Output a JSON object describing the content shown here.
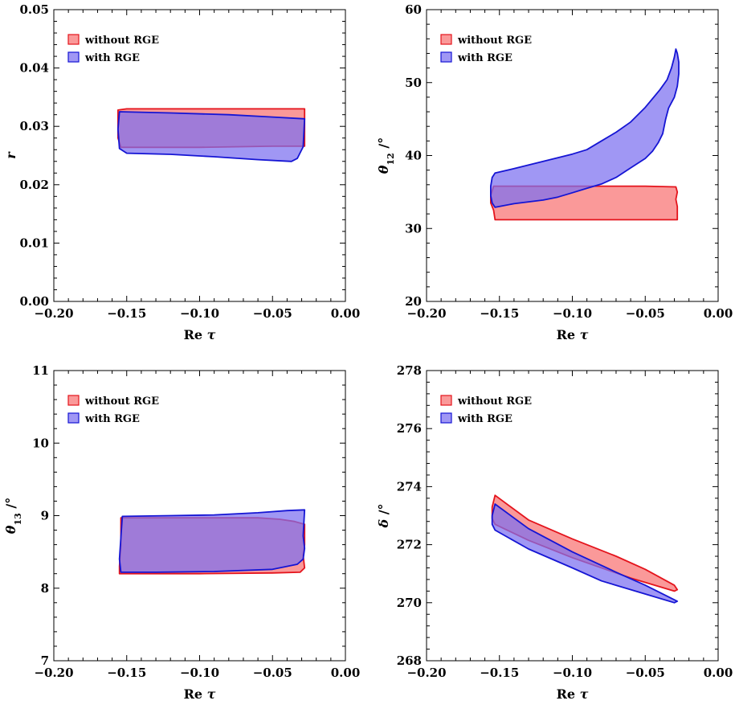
{
  "chart_data": [
    {
      "type": "area",
      "xlabel": "Re τ",
      "ylabel": "r",
      "ylabel_parts": [
        {
          "text": "r",
          "sub": false
        }
      ],
      "xlim": [
        -0.2,
        0.0
      ],
      "ylim": [
        0.0,
        0.05
      ],
      "xticks": [
        -0.2,
        -0.15,
        -0.1,
        -0.05,
        0.0
      ],
      "xtick_labels": [
        "−0.20",
        "−0.15",
        "−0.10",
        "−0.05",
        "0.00"
      ],
      "yticks": [
        0.0,
        0.01,
        0.02,
        0.03,
        0.04,
        0.05
      ],
      "ytick_labels": [
        "0.00",
        "0.01",
        "0.02",
        "0.03",
        "0.04",
        "0.05"
      ],
      "legend_position": "top-left",
      "series": [
        {
          "name": "without RGE",
          "fill": "#f87171",
          "stroke": "#e4141c",
          "points": [
            [
              -0.156,
              0.0328
            ],
            [
              -0.15,
              0.033
            ],
            [
              -0.1,
              0.033
            ],
            [
              -0.05,
              0.033
            ],
            [
              -0.028,
              0.033
            ],
            [
              -0.028,
              0.0266
            ],
            [
              -0.03,
              0.0266
            ],
            [
              -0.05,
              0.0266
            ],
            [
              -0.1,
              0.0264
            ],
            [
              -0.15,
              0.0264
            ],
            [
              -0.154,
              0.0264
            ],
            [
              -0.156,
              0.028
            ]
          ]
        },
        {
          "name": "with RGE",
          "fill": "#7b6ff0",
          "stroke": "#1515d4",
          "points": [
            [
              -0.155,
              0.0325
            ],
            [
              -0.12,
              0.0323
            ],
            [
              -0.08,
              0.032
            ],
            [
              -0.05,
              0.0316
            ],
            [
              -0.028,
              0.0313
            ],
            [
              -0.029,
              0.0265
            ],
            [
              -0.033,
              0.0245
            ],
            [
              -0.037,
              0.024
            ],
            [
              -0.06,
              0.0243
            ],
            [
              -0.09,
              0.0248
            ],
            [
              -0.12,
              0.0252
            ],
            [
              -0.15,
              0.0254
            ],
            [
              -0.155,
              0.0262
            ],
            [
              -0.156,
              0.0295
            ]
          ]
        }
      ]
    },
    {
      "type": "area",
      "xlabel": "Re τ",
      "ylabel": "θ12 /°",
      "ylabel_parts": [
        {
          "text": "θ",
          "sub": false
        },
        {
          "text": "12",
          "sub": true
        },
        {
          "text": " /°",
          "sub": false
        }
      ],
      "xlim": [
        -0.2,
        0.0
      ],
      "ylim": [
        20,
        60
      ],
      "xticks": [
        -0.2,
        -0.15,
        -0.1,
        -0.05,
        0.0
      ],
      "xtick_labels": [
        "−0.20",
        "−0.15",
        "−0.10",
        "−0.05",
        "0.00"
      ],
      "yticks": [
        20,
        30,
        40,
        50,
        60
      ],
      "ytick_labels": [
        "20",
        "30",
        "40",
        "50",
        "60"
      ],
      "legend_position": "top-left",
      "series": [
        {
          "name": "without RGE",
          "fill": "#f87171",
          "stroke": "#e4141c",
          "points": [
            [
              -0.156,
              34.5
            ],
            [
              -0.154,
              35.8
            ],
            [
              -0.1,
              35.8
            ],
            [
              -0.05,
              35.8
            ],
            [
              -0.029,
              35.7
            ],
            [
              -0.028,
              35.0
            ],
            [
              -0.029,
              34.0
            ],
            [
              -0.028,
              33.0
            ],
            [
              -0.028,
              31.2
            ],
            [
              -0.05,
              31.2
            ],
            [
              -0.1,
              31.2
            ],
            [
              -0.153,
              31.2
            ],
            [
              -0.154,
              32.5
            ],
            [
              -0.156,
              33.5
            ]
          ]
        },
        {
          "name": "with RGE",
          "fill": "#7b6ff0",
          "stroke": "#1515d4",
          "points": [
            [
              -0.156,
              35.8
            ],
            [
              -0.155,
              37.0
            ],
            [
              -0.153,
              37.6
            ],
            [
              -0.14,
              38.2
            ],
            [
              -0.12,
              39.2
            ],
            [
              -0.1,
              40.2
            ],
            [
              -0.09,
              40.8
            ],
            [
              -0.08,
              42.0
            ],
            [
              -0.07,
              43.2
            ],
            [
              -0.06,
              44.6
            ],
            [
              -0.05,
              46.6
            ],
            [
              -0.04,
              49.0
            ],
            [
              -0.035,
              50.4
            ],
            [
              -0.032,
              52.0
            ],
            [
              -0.03,
              53.5
            ],
            [
              -0.029,
              54.6
            ],
            [
              -0.028,
              54.0
            ],
            [
              -0.027,
              52.8
            ],
            [
              -0.027,
              51.2
            ],
            [
              -0.028,
              49.5
            ],
            [
              -0.03,
              48.0
            ],
            [
              -0.034,
              46.5
            ],
            [
              -0.036,
              45.0
            ],
            [
              -0.038,
              43.0
            ],
            [
              -0.041,
              41.8
            ],
            [
              -0.045,
              40.6
            ],
            [
              -0.05,
              39.6
            ],
            [
              -0.06,
              38.3
            ],
            [
              -0.07,
              37.0
            ],
            [
              -0.08,
              36.1
            ],
            [
              -0.09,
              35.5
            ],
            [
              -0.1,
              34.9
            ],
            [
              -0.11,
              34.3
            ],
            [
              -0.12,
              33.9
            ],
            [
              -0.14,
              33.4
            ],
            [
              -0.153,
              32.9
            ],
            [
              -0.155,
              33.5
            ],
            [
              -0.156,
              34.5
            ]
          ]
        }
      ]
    },
    {
      "type": "area",
      "xlabel": "Re τ",
      "ylabel": "θ13 /°",
      "ylabel_parts": [
        {
          "text": "θ",
          "sub": false
        },
        {
          "text": "13",
          "sub": true
        },
        {
          "text": " /°",
          "sub": false
        }
      ],
      "xlim": [
        -0.2,
        0.0
      ],
      "ylim": [
        7,
        11
      ],
      "xticks": [
        -0.2,
        -0.15,
        -0.1,
        -0.05,
        0.0
      ],
      "xtick_labels": [
        "−0.20",
        "−0.15",
        "−0.10",
        "−0.05",
        "0.00"
      ],
      "yticks": [
        7,
        8,
        9,
        10,
        11
      ],
      "ytick_labels": [
        "7",
        "8",
        "9",
        "10",
        "11"
      ],
      "legend_position": "top-left",
      "series": [
        {
          "name": "without RGE",
          "fill": "#f87171",
          "stroke": "#e4141c",
          "points": [
            [
              -0.154,
              8.97
            ],
            [
              -0.1,
              8.97
            ],
            [
              -0.06,
              8.97
            ],
            [
              -0.045,
              8.95
            ],
            [
              -0.035,
              8.92
            ],
            [
              -0.028,
              8.88
            ],
            [
              -0.028,
              8.6
            ],
            [
              -0.029,
              8.45
            ],
            [
              -0.028,
              8.28
            ],
            [
              -0.031,
              8.22
            ],
            [
              -0.05,
              8.21
            ],
            [
              -0.1,
              8.2
            ],
            [
              -0.155,
              8.2
            ],
            [
              -0.155,
              8.3
            ],
            [
              -0.154,
              8.6
            ]
          ]
        },
        {
          "name": "with RGE",
          "fill": "#7b6ff0",
          "stroke": "#1515d4",
          "points": [
            [
              -0.153,
              8.99
            ],
            [
              -0.12,
              9.0
            ],
            [
              -0.09,
              9.01
            ],
            [
              -0.06,
              9.04
            ],
            [
              -0.04,
              9.07
            ],
            [
              -0.028,
              9.08
            ],
            [
              -0.029,
              8.72
            ],
            [
              -0.028,
              8.55
            ],
            [
              -0.029,
              8.4
            ],
            [
              -0.033,
              8.33
            ],
            [
              -0.05,
              8.26
            ],
            [
              -0.09,
              8.23
            ],
            [
              -0.13,
              8.22
            ],
            [
              -0.154,
              8.22
            ],
            [
              -0.155,
              8.4
            ],
            [
              -0.154,
              8.7
            ]
          ]
        }
      ]
    },
    {
      "type": "area",
      "xlabel": "Re τ",
      "ylabel": "δ /°",
      "ylabel_parts": [
        {
          "text": "δ",
          "sub": false
        },
        {
          "text": " /°",
          "sub": false
        }
      ],
      "xlim": [
        -0.2,
        0.0
      ],
      "ylim": [
        268,
        278
      ],
      "xticks": [
        -0.2,
        -0.15,
        -0.1,
        -0.05,
        0.0
      ],
      "xtick_labels": [
        "−0.20",
        "−0.15",
        "−0.10",
        "−0.05",
        "0.00"
      ],
      "yticks": [
        268,
        270,
        272,
        274,
        276,
        278
      ],
      "ytick_labels": [
        "268",
        "270",
        "272",
        "274",
        "276",
        "278"
      ],
      "legend_position": "top-left",
      "series": [
        {
          "name": "without RGE",
          "fill": "#f87171",
          "stroke": "#e4141c",
          "points": [
            [
              -0.155,
              273.3
            ],
            [
              -0.153,
              273.7
            ],
            [
              -0.13,
              272.85
            ],
            [
              -0.1,
              272.2
            ],
            [
              -0.07,
              271.6
            ],
            [
              -0.05,
              271.15
            ],
            [
              -0.03,
              270.6
            ],
            [
              -0.028,
              270.45
            ],
            [
              -0.03,
              270.4
            ],
            [
              -0.06,
              270.85
            ],
            [
              -0.1,
              271.55
            ],
            [
              -0.13,
              272.15
            ],
            [
              -0.153,
              272.7
            ],
            [
              -0.155,
              272.9
            ]
          ]
        },
        {
          "name": "with RGE",
          "fill": "#7b6ff0",
          "stroke": "#1515d4",
          "points": [
            [
              -0.155,
              273.0
            ],
            [
              -0.153,
              273.4
            ],
            [
              -0.13,
              272.55
            ],
            [
              -0.1,
              271.75
            ],
            [
              -0.07,
              271.05
            ],
            [
              -0.05,
              270.6
            ],
            [
              -0.03,
              270.1
            ],
            [
              -0.028,
              270.05
            ],
            [
              -0.03,
              270.0
            ],
            [
              -0.05,
              270.3
            ],
            [
              -0.08,
              270.75
            ],
            [
              -0.1,
              271.2
            ],
            [
              -0.13,
              271.85
            ],
            [
              -0.153,
              272.5
            ],
            [
              -0.155,
              272.7
            ]
          ]
        }
      ]
    }
  ]
}
